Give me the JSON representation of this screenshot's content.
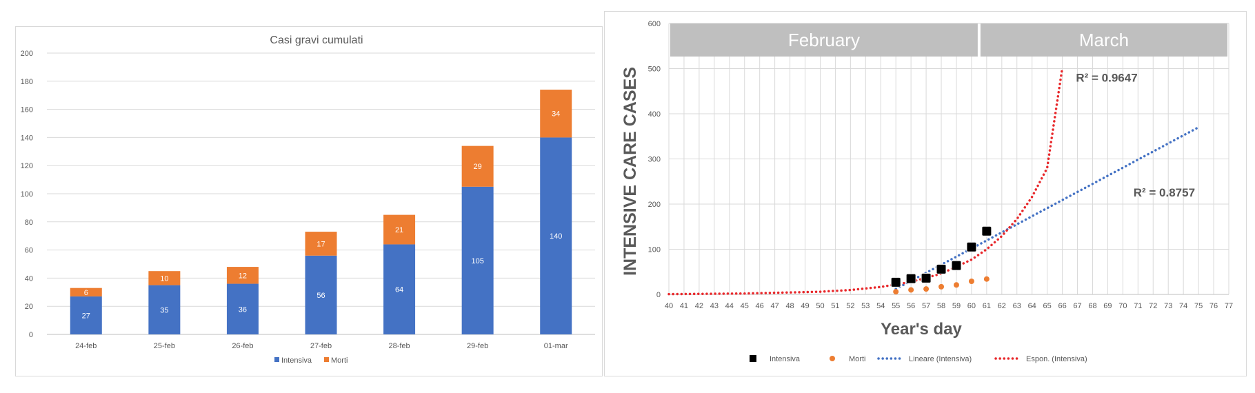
{
  "chart_data": [
    {
      "type": "bar",
      "stacked": true,
      "title": "Casi gravi cumulati",
      "categories": [
        "24-feb",
        "25-feb",
        "26-feb",
        "27-feb",
        "28-feb",
        "29-feb",
        "01-mar"
      ],
      "series": [
        {
          "name": "Intensiva",
          "color": "#4472c4",
          "values": [
            27,
            35,
            36,
            56,
            64,
            105,
            140
          ]
        },
        {
          "name": "Morti",
          "color": "#ed7d31",
          "values": [
            6,
            10,
            12,
            17,
            21,
            29,
            34
          ]
        }
      ],
      "ylim": [
        0,
        200
      ],
      "yticks": [
        0,
        20,
        40,
        60,
        80,
        100,
        120,
        140,
        160,
        180,
        200
      ],
      "grid": true,
      "legend_position": "bottom"
    },
    {
      "type": "scatter",
      "xlabel": "Year's day",
      "ylabel": "INTENSIVE CARE CASES",
      "xlim": [
        40,
        77
      ],
      "ylim": [
        0,
        600
      ],
      "xticks": [
        40,
        41,
        42,
        43,
        44,
        45,
        46,
        47,
        48,
        49,
        50,
        51,
        52,
        53,
        54,
        55,
        56,
        57,
        58,
        59,
        60,
        61,
        62,
        63,
        64,
        65,
        66,
        67,
        68,
        69,
        70,
        71,
        72,
        73,
        74,
        75,
        76,
        77
      ],
      "yticks": [
        0,
        100,
        200,
        300,
        400,
        500,
        600
      ],
      "grid": true,
      "legend_position": "bottom",
      "month_bands": [
        {
          "label": "February",
          "from": 40,
          "to": 60.5
        },
        {
          "label": "March",
          "from": 60.5,
          "to": 77
        }
      ],
      "series": [
        {
          "name": "Intensiva",
          "color": "#000000",
          "marker": "square",
          "x": [
            55,
            56,
            57,
            58,
            59,
            60,
            61
          ],
          "y": [
            27,
            35,
            36,
            56,
            64,
            105,
            140
          ]
        },
        {
          "name": "Morti",
          "color": "#ed7d31",
          "marker": "circle",
          "x": [
            55,
            56,
            57,
            58,
            59,
            60,
            61
          ],
          "y": [
            6,
            10,
            12,
            17,
            21,
            29,
            34
          ]
        },
        {
          "name": "Lineare (Intensiva)",
          "color": "#4472c4",
          "style": "dotted",
          "x": [
            55,
            75
          ],
          "y": [
            12,
            370
          ]
        },
        {
          "name": "Espon. (Intensiva)",
          "color": "#e8282b",
          "style": "dotted",
          "x": [
            40,
            45,
            50,
            52,
            54,
            56,
            58,
            60,
            61,
            62,
            63,
            64,
            65,
            66
          ],
          "y": [
            0.6,
            2,
            6,
            9.8,
            16.5,
            27.6,
            46,
            77,
            100,
            129,
            167,
            216,
            280,
            502
          ]
        }
      ],
      "annotations": [
        {
          "text": "R² = 0.9647",
          "x": 66.9,
          "y": 480
        },
        {
          "text": "R² = 0.8757",
          "x": 70.7,
          "y": 226
        }
      ]
    }
  ]
}
